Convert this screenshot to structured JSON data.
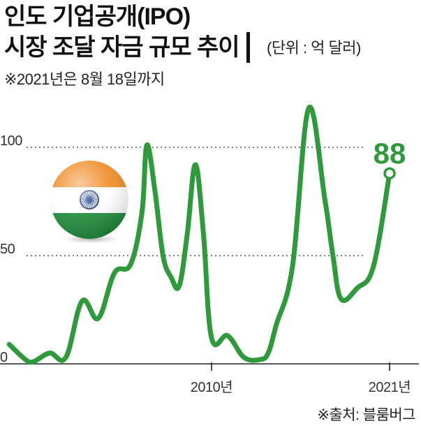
{
  "header": {
    "title_line1": "인도 기업공개(IPO)",
    "title_line2": "시장 조달 자금 규모 추이",
    "unit": "(단위 : 억 달러)",
    "note": "※2021년은 8월 18일까지"
  },
  "footer": {
    "source": "※출처: 블룸버그"
  },
  "colors": {
    "line": "#2e9a3b",
    "axis": "#222222",
    "grid": "#555555"
  },
  "icon": {
    "name": "india-flag-icon"
  },
  "chart_data": {
    "type": "line",
    "title": "인도 기업공개(IPO) 시장 조달 자금 규모 추이",
    "unit": "(단위 : 억 달러)",
    "ylim": [
      0,
      125
    ],
    "y_ticks": [
      0,
      50,
      100
    ],
    "x_ticks": [
      {
        "x": 2010,
        "label": "2010년"
      },
      {
        "x": 2021,
        "label": "2021년"
      }
    ],
    "grid": "dotted horizontal lines at 50 and 100",
    "end_label": "88",
    "series": [
      {
        "x": [
          1997.5,
          1998.5,
          1999.0,
          2000.0,
          2001.0,
          2002.0,
          2003.0,
          2004.0,
          2005.0,
          2005.7,
          2006.0,
          2006.5,
          2007.0,
          2007.5,
          2008.0,
          2008.5,
          2009.0,
          2009.5,
          2010.0,
          2011.0,
          2012.0,
          2013.0,
          2013.5,
          2014.0,
          2015.0,
          2016.0,
          2017.0,
          2017.5,
          2018.0,
          2019.0,
          2020.0,
          2021.0
        ],
        "values": [
          9,
          2,
          1,
          5,
          3,
          29,
          21,
          42,
          46,
          70,
          101,
          80,
          50,
          40,
          36,
          60,
          92,
          60,
          12,
          13,
          3,
          2,
          5,
          18,
          45,
          118,
          76,
          50,
          30,
          35,
          45,
          88
        ]
      }
    ]
  }
}
